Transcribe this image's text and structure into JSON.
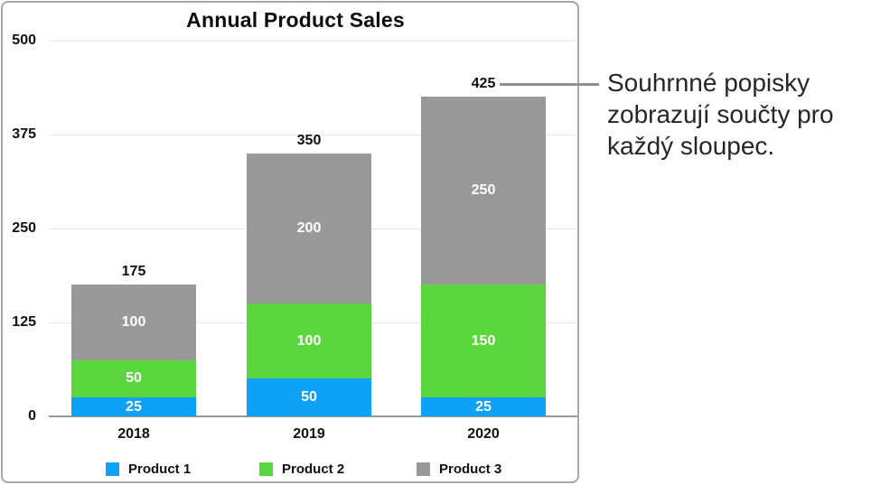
{
  "chart_data": {
    "type": "bar",
    "stacked": true,
    "title": "Annual Product Sales",
    "categories": [
      "2018",
      "2019",
      "2020"
    ],
    "series": [
      {
        "name": "Product 1",
        "color": "#0da2f8",
        "values": [
          25,
          50,
          25
        ]
      },
      {
        "name": "Product 2",
        "color": "#5cd63e",
        "values": [
          50,
          100,
          150
        ]
      },
      {
        "name": "Product 3",
        "color": "#999999",
        "values": [
          100,
          200,
          250
        ]
      }
    ],
    "totals": [
      175,
      350,
      425
    ],
    "y_ticks": [
      0,
      125,
      250,
      375,
      500
    ],
    "ylim": [
      0,
      500
    ],
    "grid": true,
    "legend_position": "bottom",
    "axis_color": "#999999",
    "gridline_color": "#e6e6e6",
    "inside_label_color": "#ffffff",
    "outside_label_color": "#111111"
  },
  "callout": {
    "full_text": "Souhrnné popisky zobrazují součty pro každý sloupec.",
    "lines": [
      "Souhrnné popisky",
      "zobrazují součty pro",
      "každý sloupec."
    ],
    "line_color": "#8f8f8f"
  }
}
